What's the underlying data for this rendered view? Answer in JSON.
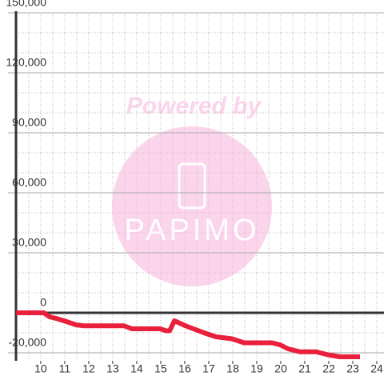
{
  "chart_data": {
    "type": "line",
    "annotations": [
      "Powered by",
      "PAPIMO"
    ],
    "x": [
      8.97,
      10.13,
      10.37,
      10.7,
      10.97,
      11.47,
      11.8,
      13.47,
      13.8,
      14.97,
      15.23,
      15.37,
      15.57,
      16.03,
      16.8,
      17.3,
      17.97,
      18.47,
      19.63,
      19.97,
      20.3,
      20.8,
      21.47,
      21.97,
      22.47,
      23.3
    ],
    "series": [
      {
        "color": "#e8203c",
        "values": [
          0,
          0,
          -2000,
          -3000,
          -4000,
          -6000,
          -6500,
          -6500,
          -8000,
          -8000,
          -9000,
          -9000,
          -4000,
          -6500,
          -10000,
          -12000,
          -13000,
          -15000,
          -15000,
          -16000,
          -18000,
          -19500,
          -19500,
          -21000,
          -22000,
          -22000
        ]
      }
    ],
    "xlim": [
      8.97,
      24.3
    ],
    "xticks": [
      10,
      11,
      12,
      13,
      14,
      15,
      16,
      17,
      18,
      19,
      20,
      21,
      22,
      23,
      24
    ],
    "xminorticks": [
      9,
      9.5,
      10,
      10.5,
      11,
      11.5,
      12,
      12.5,
      13,
      13.5,
      14,
      14.5,
      15,
      15.5,
      16,
      16.5,
      17,
      17.5,
      18,
      18.5,
      19,
      19.5,
      20,
      20.5,
      21,
      21.5,
      22,
      22.5,
      23,
      23.5,
      24
    ],
    "ylim": [
      -24000,
      150000
    ],
    "yticks": [
      {
        "value": -20000,
        "label": "-20,000"
      },
      0,
      {
        "value": 30000,
        "label": "30,000"
      },
      {
        "value": 60000,
        "label": "60,000"
      },
      {
        "value": 90000,
        "label": "90,000"
      },
      {
        "value": 120000,
        "label": "120,000"
      },
      {
        "value": 150000,
        "label": "150,000"
      }
    ],
    "yminorticks": [
      -20000,
      -10000,
      10000,
      20000,
      40000,
      50000,
      70000,
      80000,
      100000,
      110000,
      130000,
      140000
    ],
    "grid": true
  }
}
